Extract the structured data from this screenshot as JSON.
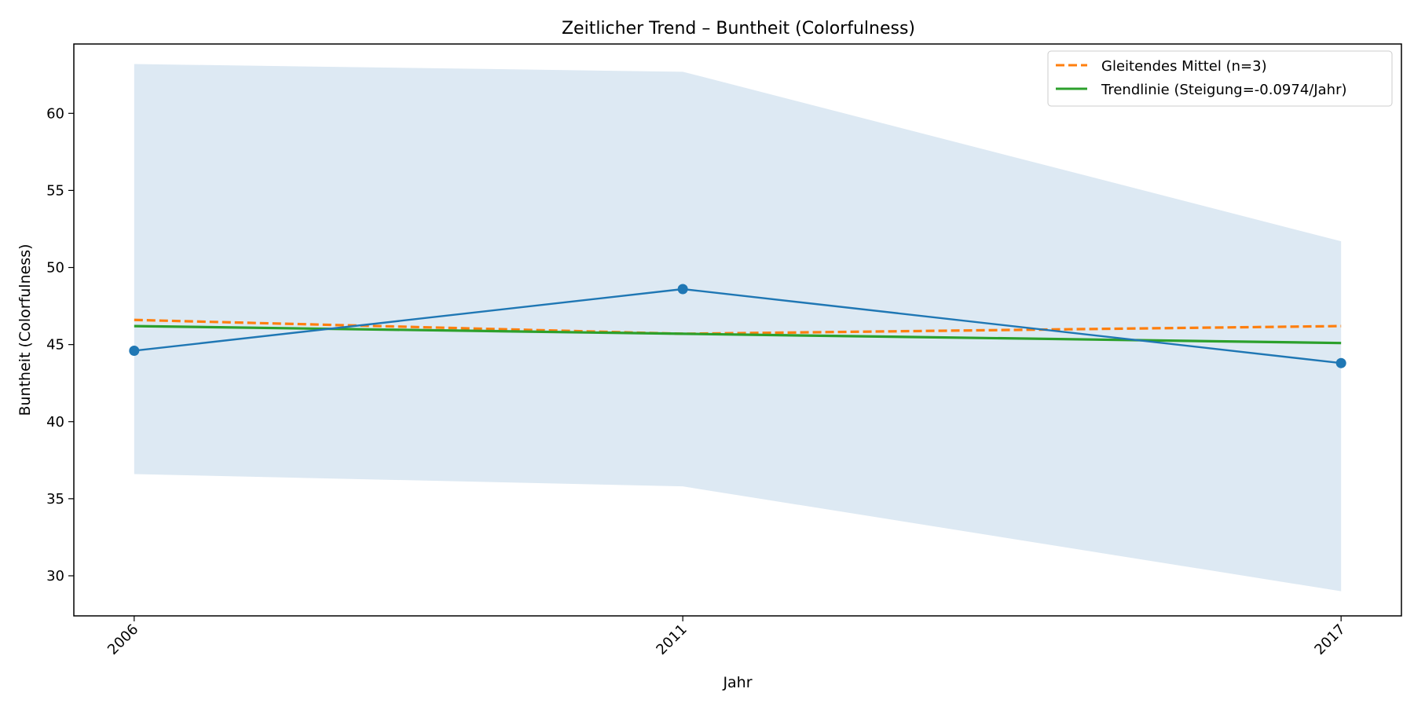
{
  "chart_data": {
    "type": "line",
    "title": "Zeitlicher Trend – Buntheit (Colorfulness)",
    "xlabel": "Jahr",
    "ylabel": "Buntheit (Colorfulness)",
    "x": [
      2006,
      2011,
      2017
    ],
    "xlim": [
      2005.45,
      2017.55
    ],
    "ylim": [
      27.4,
      64.5
    ],
    "yticks": [
      30,
      35,
      40,
      45,
      50,
      55,
      60
    ],
    "grid": false,
    "legend_position": "top-right",
    "band": {
      "upper": [
        63.2,
        62.7,
        51.7
      ],
      "lower": [
        36.6,
        35.8,
        29.0
      ],
      "color": "#dde9f3"
    },
    "series": [
      {
        "values": [
          44.6,
          48.6,
          43.8
        ],
        "color": "#1f77b4",
        "style": "solid",
        "markers": true
      },
      {
        "name": "Gleitendes Mittel (n=3)",
        "values": [
          46.6,
          45.7,
          46.2
        ],
        "color": "#ff7f0e",
        "style": "dashed",
        "markers": false
      },
      {
        "name": "Trendlinie (Steigung=-0.0974/Jahr)",
        "values": [
          46.2,
          45.7,
          45.1
        ],
        "color": "#2ca02c",
        "style": "solid",
        "markers": false
      }
    ]
  }
}
